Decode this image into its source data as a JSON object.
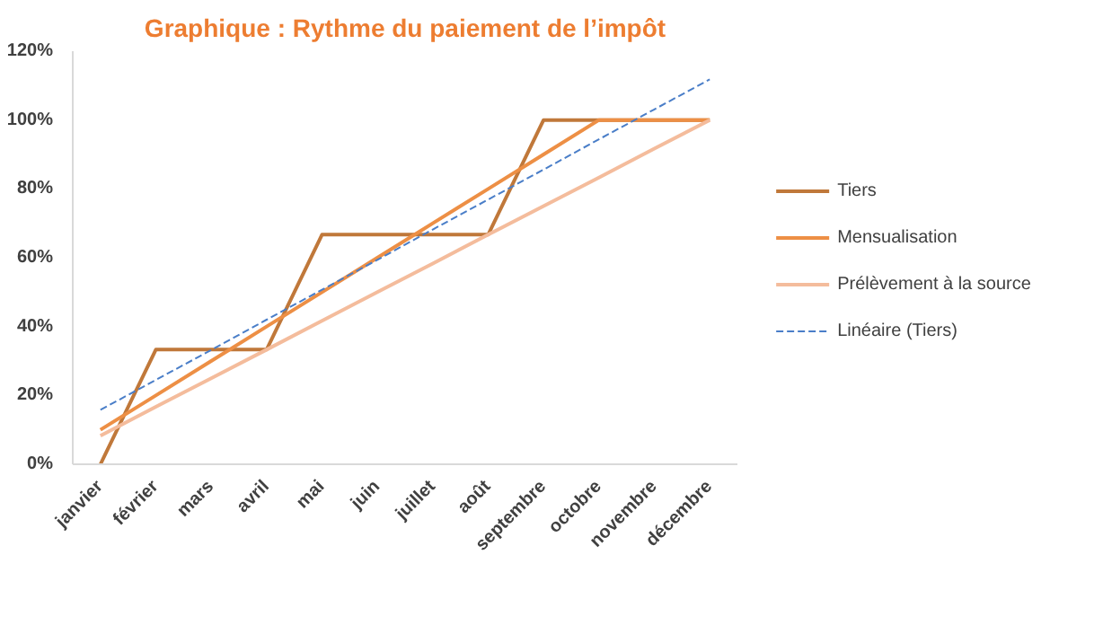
{
  "chart_data": {
    "type": "line",
    "title": "Graphique : Rythme du paiement de l’impôt",
    "categories": [
      "janvier",
      "février",
      "mars",
      "avril",
      "mai",
      "juin",
      "juillet",
      "août",
      "septembre",
      "octobre",
      "novembre",
      "décembre"
    ],
    "series": [
      {
        "name": "Tiers",
        "color": "#c0783a",
        "values": [
          0,
          33.3,
          33.3,
          33.3,
          66.7,
          66.7,
          66.7,
          66.7,
          100,
          100,
          100,
          100
        ]
      },
      {
        "name": "Mensualisation",
        "color": "#ed8f45",
        "values": [
          10,
          20,
          30,
          40,
          50,
          60,
          70,
          80,
          90,
          100,
          100,
          100
        ]
      },
      {
        "name": "Prélèvement à la source",
        "color": "#f4bc9c",
        "values": [
          8.3,
          16.7,
          25,
          33.3,
          41.7,
          50,
          58.3,
          66.7,
          75,
          83.3,
          91.7,
          100
        ]
      },
      {
        "name": "Linéaire (Tiers)",
        "color": "#4a7ec8",
        "line_style": "dashed",
        "values": [
          15.8,
          24.5,
          33.2,
          42.0,
          50.7,
          59.4,
          68.2,
          76.9,
          85.6,
          94.4,
          103.1,
          111.8
        ]
      }
    ],
    "ylim": [
      0,
      120
    ],
    "yticks": [
      {
        "value": 0,
        "label": "0%"
      },
      {
        "value": 20,
        "label": "20%"
      },
      {
        "value": 40,
        "label": "40%"
      },
      {
        "value": 60,
        "label": "60%"
      },
      {
        "value": 80,
        "label": "80%"
      },
      {
        "value": 100,
        "label": "100%"
      },
      {
        "value": 120,
        "label": "120%"
      }
    ],
    "grid": false,
    "legend": "right",
    "marker": "none"
  }
}
